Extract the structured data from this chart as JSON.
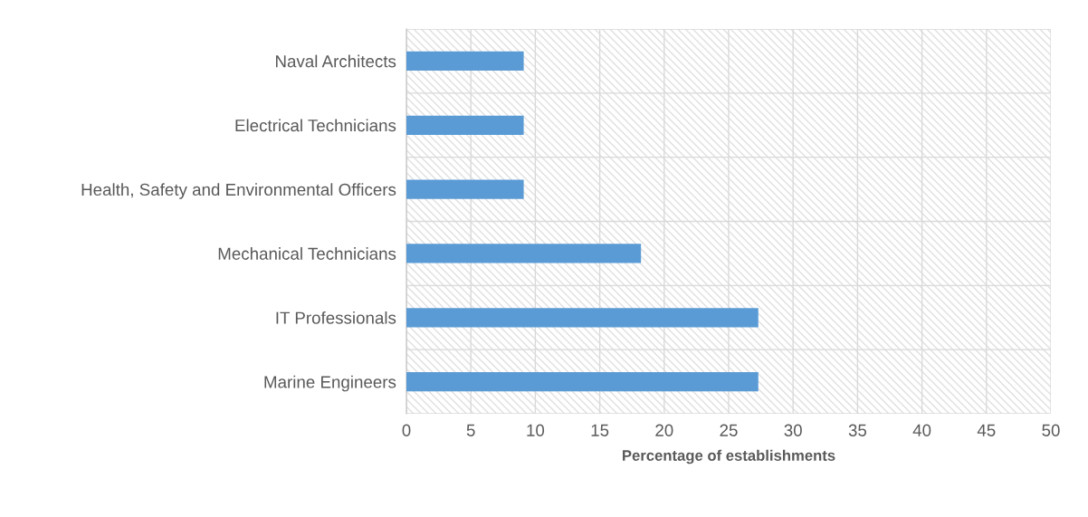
{
  "chart_data": {
    "type": "bar",
    "orientation": "horizontal",
    "xlabel": "Percentage of establishments",
    "categories": [
      "Naval Architects",
      "Electrical Technicians",
      "Health, Safety and Environmental Officers",
      "Mechanical Technicians",
      "IT Professionals",
      "Marine Engineers"
    ],
    "values": [
      9.1,
      9.1,
      9.1,
      18.2,
      27.3,
      27.3
    ],
    "color": "#5b9bd5",
    "xlim": [
      0,
      50
    ],
    "xticks": [
      0,
      5,
      10,
      15,
      20,
      25,
      30,
      35,
      40,
      45,
      50
    ],
    "grid": true
  }
}
